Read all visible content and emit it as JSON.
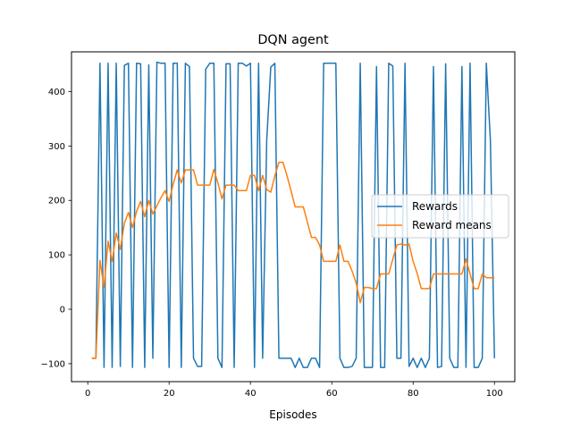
{
  "chart_data": {
    "type": "line",
    "title": "DQN agent",
    "xlabel": "Episodes",
    "ylabel": "",
    "xlim": [
      -4.0,
      105.0
    ],
    "ylim": [
      -133,
      473
    ],
    "xticks": [
      0,
      20,
      40,
      60,
      80,
      100
    ],
    "yticks": [
      -100,
      0,
      100,
      200,
      300,
      400
    ],
    "grid": false,
    "legend": "center-right",
    "series": [
      {
        "name": "Rewards",
        "color": "#1f77b4",
        "x": [
          1,
          2,
          3,
          4,
          5,
          6,
          7,
          8,
          9,
          10,
          11,
          12,
          13,
          14,
          15,
          16,
          17,
          18,
          19,
          20,
          21,
          22,
          23,
          24,
          25,
          26,
          27,
          28,
          29,
          30,
          31,
          32,
          33,
          34,
          35,
          36,
          37,
          38,
          39,
          40,
          41,
          42,
          43,
          44,
          45,
          46,
          47,
          48,
          49,
          50,
          51,
          52,
          53,
          54,
          55,
          56,
          57,
          58,
          59,
          60,
          61,
          62,
          63,
          64,
          65,
          66,
          67,
          68,
          69,
          70,
          71,
          72,
          73,
          74,
          75,
          76,
          77,
          78,
          79,
          80,
          81,
          82,
          83,
          84,
          85,
          86,
          87,
          88,
          89,
          90,
          91,
          92,
          93,
          94,
          95,
          96,
          97,
          98,
          99,
          100
        ],
        "values": [
          -90,
          -90,
          452,
          -107,
          452,
          -107,
          452,
          -105,
          448,
          452,
          -107,
          452,
          451,
          -107,
          449,
          -90,
          454,
          452,
          452,
          -107,
          452,
          452,
          -107,
          452,
          446,
          -90,
          -105,
          -105,
          441,
          452,
          452,
          -90,
          -107,
          451,
          451,
          -107,
          452,
          452,
          447,
          452,
          -107,
          452,
          -90,
          310,
          445,
          452,
          -90,
          -90,
          -90,
          -90,
          -107,
          -90,
          -107,
          -107,
          -90,
          -90,
          -107,
          452,
          452,
          452,
          452,
          -90,
          -107,
          -107,
          -105,
          -90,
          452,
          -107,
          -107,
          -107,
          446,
          -107,
          -107,
          452,
          447,
          -90,
          -90,
          452,
          -105,
          -90,
          -107,
          -90,
          -107,
          -90,
          446,
          -107,
          -105,
          451,
          -90,
          -107,
          -107,
          446,
          -107,
          452,
          -107,
          -107,
          -90,
          452,
          310,
          -90
        ]
      },
      {
        "name": "Reward means",
        "color": "#ff7f0e",
        "x": [
          1,
          2,
          3,
          4,
          5,
          6,
          7,
          8,
          9,
          10,
          11,
          12,
          13,
          14,
          15,
          16,
          17,
          18,
          19,
          20,
          21,
          22,
          23,
          24,
          25,
          26,
          27,
          28,
          29,
          30,
          31,
          32,
          33,
          34,
          35,
          36,
          37,
          38,
          39,
          40,
          41,
          42,
          43,
          44,
          45,
          46,
          47,
          48,
          49,
          50,
          51,
          52,
          53,
          54,
          55,
          56,
          57,
          58,
          59,
          60,
          61,
          62,
          63,
          64,
          65,
          66,
          67,
          68,
          69,
          70,
          71,
          72,
          73,
          74,
          75,
          76,
          77,
          78,
          79,
          80,
          81,
          82,
          83,
          84,
          85,
          86,
          87,
          88,
          89,
          90,
          91,
          92,
          93,
          94,
          95,
          96,
          97,
          98,
          99,
          100
        ],
        "values": [
          -90,
          -90,
          90,
          40,
          125,
          88,
          140,
          110,
          158,
          178,
          150,
          180,
          198,
          170,
          200,
          175,
          190,
          205,
          218,
          198,
          230,
          256,
          232,
          256,
          256,
          256,
          228,
          228,
          228,
          228,
          257,
          232,
          203,
          228,
          228,
          228,
          218,
          218,
          218,
          246,
          246,
          218,
          246,
          220,
          215,
          245,
          270,
          270,
          245,
          217,
          188,
          188,
          188,
          160,
          132,
          132,
          118,
          88,
          88,
          88,
          88,
          118,
          88,
          88,
          70,
          48,
          12,
          40,
          40,
          38,
          38,
          65,
          65,
          65,
          92,
          118,
          120,
          118,
          120,
          88,
          66,
          38,
          38,
          38,
          65,
          65,
          65,
          65,
          65,
          65,
          65,
          65,
          92,
          65,
          38,
          38,
          65,
          58,
          58,
          58
        ]
      }
    ]
  }
}
